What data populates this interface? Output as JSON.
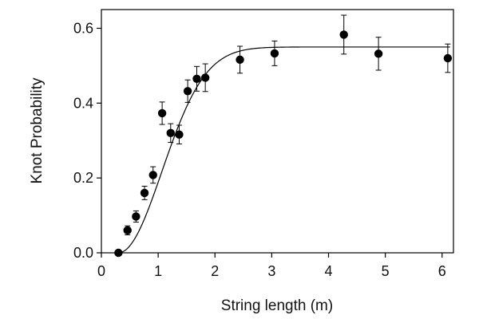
{
  "chart_data": {
    "type": "scatter",
    "title": "",
    "xlabel": "String length (m)",
    "ylabel": "Knot Probability",
    "xlim": [
      0,
      6.2
    ],
    "ylim": [
      0,
      0.65
    ],
    "x_ticks": [
      0,
      1,
      2,
      3,
      4,
      5,
      6
    ],
    "y_ticks": [
      0.0,
      0.2,
      0.4,
      0.6
    ],
    "x_tick_labels": [
      "0",
      "1",
      "2",
      "3",
      "4",
      "5",
      "6"
    ],
    "y_tick_labels": [
      "0.0",
      "0.2",
      "0.4",
      "0.6"
    ],
    "grid": false,
    "legend": "none",
    "colors": {
      "points": "#000000",
      "fit_line": "#000000",
      "axes": "#000000"
    },
    "series": [
      {
        "kind": "points_with_error_bars",
        "points": [
          {
            "x": 0.3,
            "y": 0.0,
            "err": 0.0
          },
          {
            "x": 0.46,
            "y": 0.06,
            "err": 0.012
          },
          {
            "x": 0.61,
            "y": 0.097,
            "err": 0.015
          },
          {
            "x": 0.76,
            "y": 0.16,
            "err": 0.018
          },
          {
            "x": 0.91,
            "y": 0.208,
            "err": 0.022
          },
          {
            "x": 1.07,
            "y": 0.373,
            "err": 0.03
          },
          {
            "x": 1.22,
            "y": 0.32,
            "err": 0.025
          },
          {
            "x": 1.37,
            "y": 0.316,
            "err": 0.025
          },
          {
            "x": 1.52,
            "y": 0.432,
            "err": 0.03
          },
          {
            "x": 1.68,
            "y": 0.465,
            "err": 0.033
          },
          {
            "x": 1.83,
            "y": 0.468,
            "err": 0.037
          },
          {
            "x": 2.44,
            "y": 0.516,
            "err": 0.036
          },
          {
            "x": 3.05,
            "y": 0.533,
            "err": 0.033
          },
          {
            "x": 4.27,
            "y": 0.583,
            "err": 0.052
          },
          {
            "x": 4.88,
            "y": 0.532,
            "err": 0.044
          },
          {
            "x": 6.1,
            "y": 0.52,
            "err": 0.038
          }
        ]
      },
      {
        "kind": "fit_curve",
        "model": "y = A*(1 - exp(-((x - x0)/L)^2))",
        "A": 0.55,
        "x0": 0.3,
        "L": 1.08
      }
    ]
  }
}
